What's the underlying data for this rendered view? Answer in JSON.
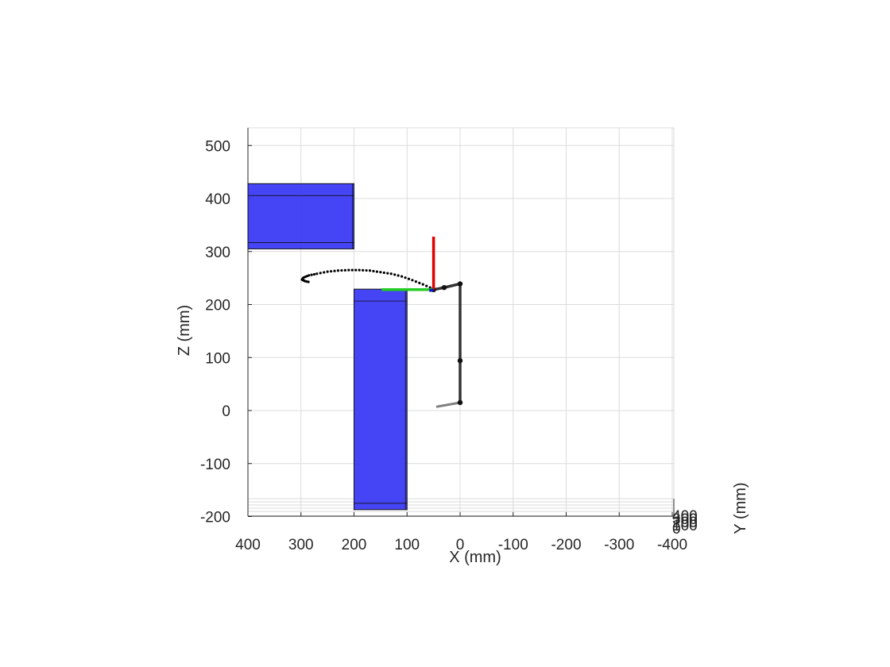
{
  "chart_data": {
    "type": "scatter",
    "title": "",
    "xlabel": "X (mm)",
    "ylabel": "Z (mm)",
    "zlabel": "Y (mm)",
    "xlim": [
      400,
      -400
    ],
    "zlim": [
      -200,
      530
    ],
    "x_ticks": [
      400,
      300,
      200,
      100,
      0,
      -100,
      -200,
      -300,
      -400
    ],
    "x_tick_labels": [
      "400",
      "300",
      "200",
      "100",
      "0",
      "-100",
      "-200",
      "-300",
      "-400"
    ],
    "z_ticks": [
      500,
      400,
      300,
      200,
      100,
      0,
      -100,
      -200
    ],
    "z_tick_labels": [
      "500",
      "400",
      "300",
      "200",
      "100",
      "0",
      "-100",
      "-200"
    ],
    "y_tick_labels": [
      "400",
      "300",
      "200",
      "100",
      "0"
    ],
    "grid": true,
    "obstacles": [
      {
        "x_range": [
          200,
          400
        ],
        "z_range": [
          305,
          428
        ],
        "color": "#3b3bf5"
      },
      {
        "x_range": [
          100,
          200
        ],
        "z_range": [
          -187,
          229
        ],
        "color": "#3b3bf5"
      }
    ],
    "trajectory": {
      "x": [
        50,
        70,
        90,
        110,
        130,
        150,
        170,
        190,
        210,
        230,
        250,
        270,
        285,
        295,
        298,
        292,
        283
      ],
      "z": [
        229,
        238,
        246,
        253,
        258,
        261,
        264,
        265,
        265,
        264,
        262,
        258,
        255,
        251,
        247,
        244,
        242
      ],
      "color": "#000000"
    },
    "arm": {
      "joints_x": [
        0,
        0,
        0,
        30,
        50
      ],
      "joints_z": [
        15,
        94,
        239,
        232,
        228
      ],
      "color": "#333333",
      "base_link": {
        "x": [
          0,
          45
        ],
        "z": [
          15,
          7
        ],
        "color": "#7f7f7f"
      }
    },
    "end_effector_frame": {
      "origin": [
        50,
        228
      ],
      "x_axis_end": [
        50,
        328
      ],
      "y_axis_end": [
        148,
        228
      ],
      "z_axis_end": [
        58,
        226
      ],
      "colors": [
        "#e00000",
        "#22cc22",
        "#1010d0"
      ]
    }
  }
}
